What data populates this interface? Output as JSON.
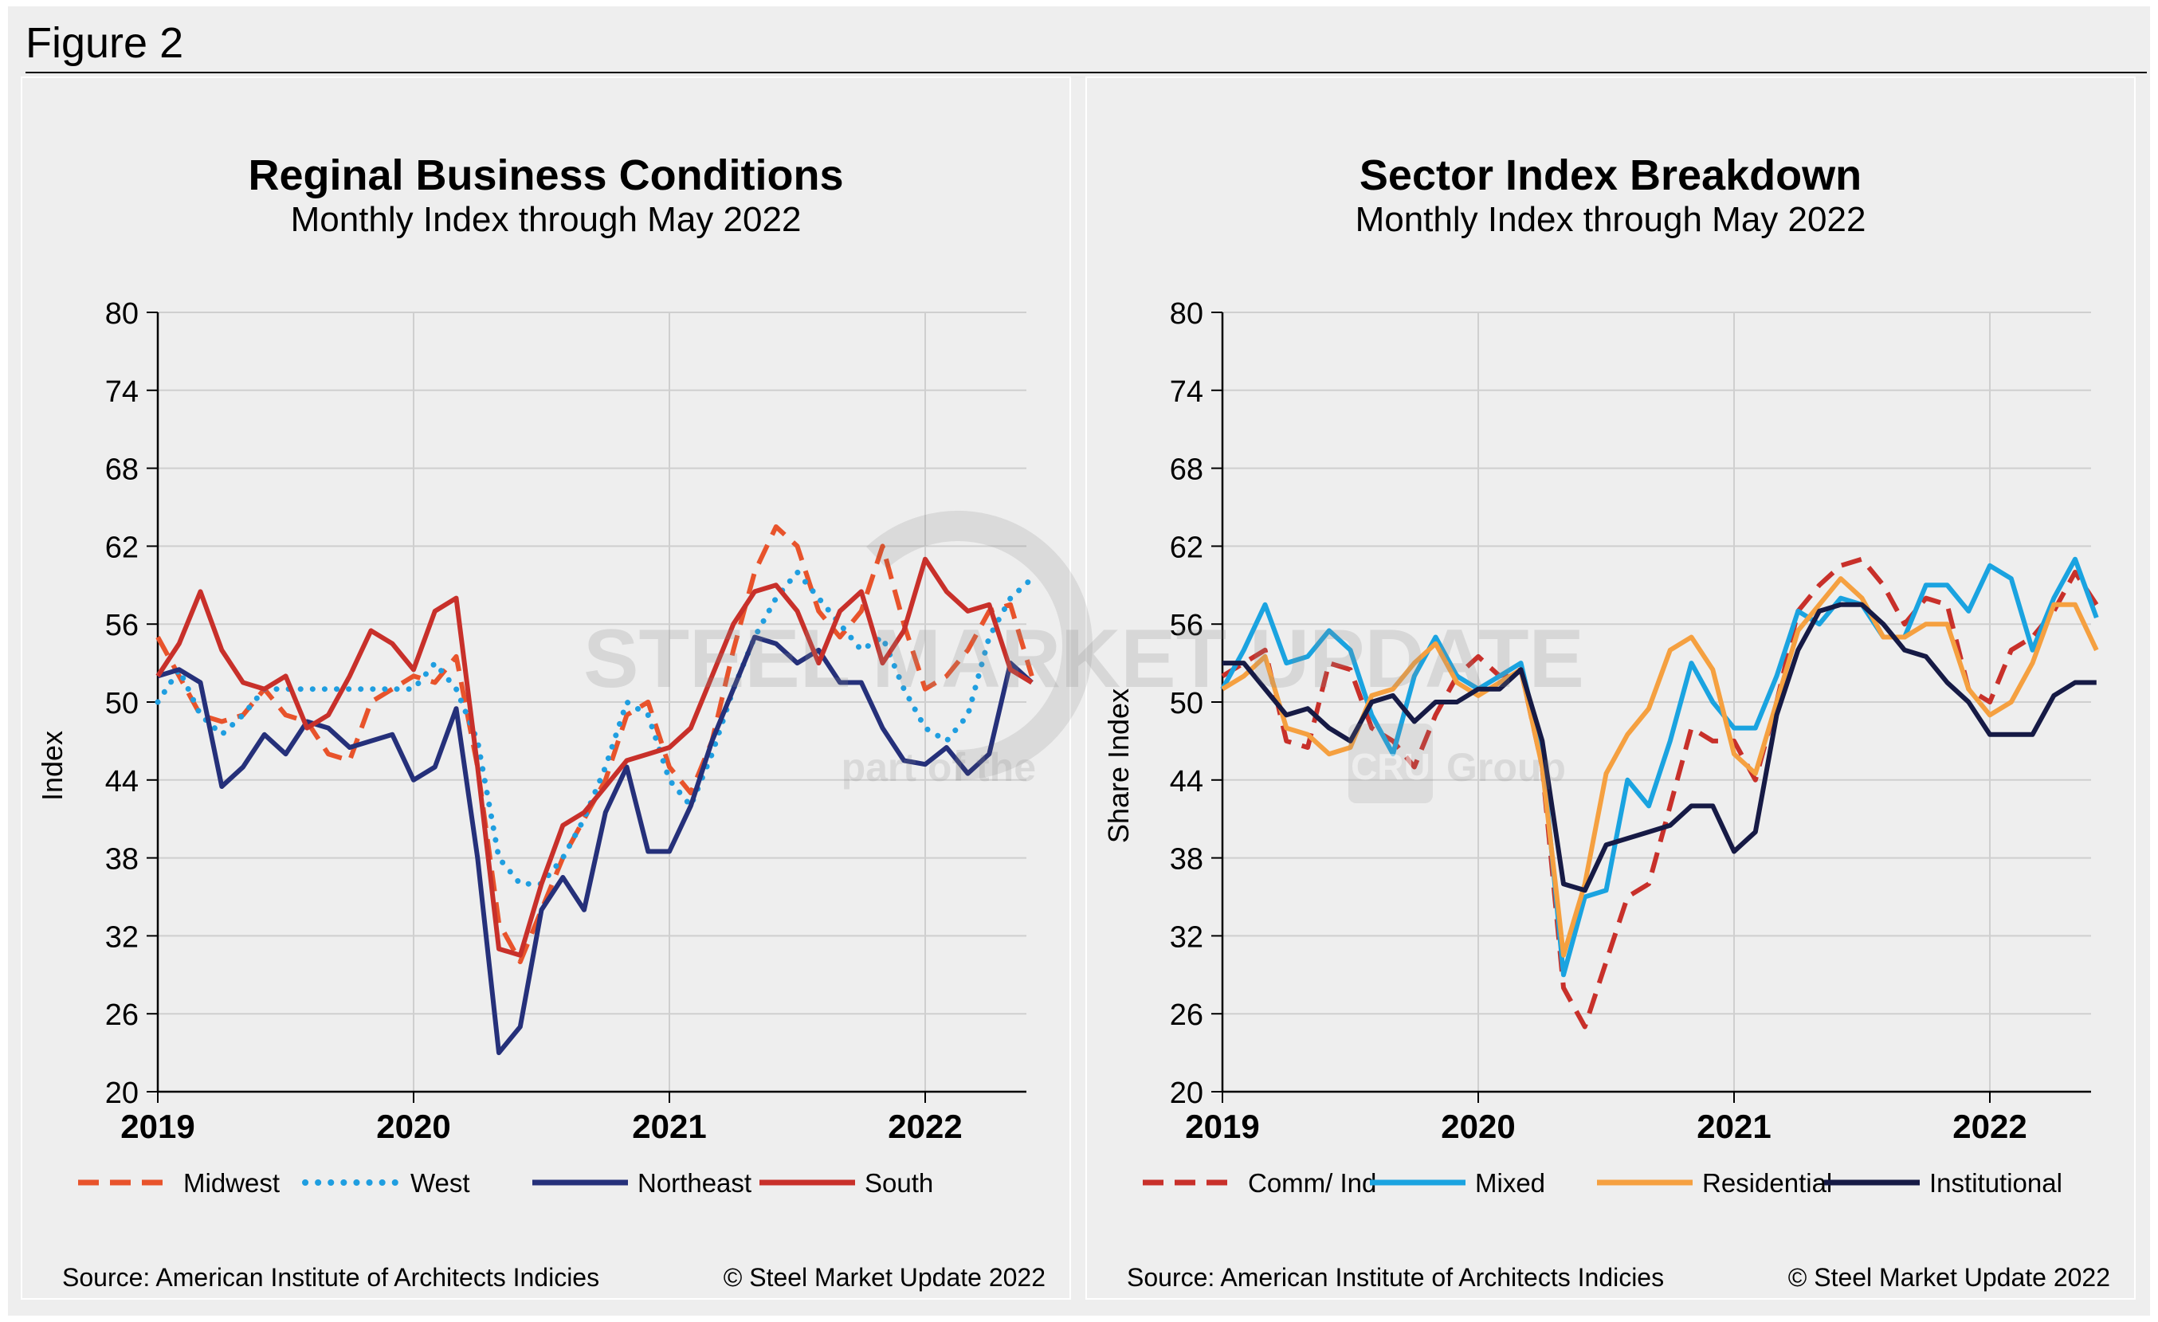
{
  "figure_title": "Figure 2",
  "watermark": {
    "brand": "STEEL MARKET UPDATE",
    "tagline": "part of the",
    "group_mark": "CRU",
    "group_word": "Group"
  },
  "chart_data": [
    {
      "type": "line",
      "title": "Reginal Business Conditions",
      "subtitle": "Monthly Index through May 2022",
      "xlabel": "",
      "ylabel": "Index",
      "ylim": [
        20,
        80
      ],
      "yticks": [
        "80",
        "74",
        "68",
        "62",
        "56",
        "50",
        "44",
        "38",
        "32",
        "26",
        "20"
      ],
      "xticks": [
        "2019",
        "2020",
        "2021",
        "2022"
      ],
      "x_start": "2019-01",
      "grid": true,
      "legend_position": "bottom",
      "source": "Source: American Institute of Architects Indicies",
      "copyright": "© Steel Market Update 2022",
      "series": [
        {
          "name": "Midwest",
          "style": "dashed",
          "color": "#e8532b",
          "values": [
            55,
            52,
            49,
            48.5,
            49,
            51,
            49,
            48.5,
            46,
            45.5,
            50,
            51,
            52,
            51.5,
            53.5,
            45,
            33,
            30,
            34,
            38,
            41,
            44,
            49,
            50,
            45,
            43,
            47,
            54,
            60,
            63.5,
            62,
            57,
            55,
            57,
            62,
            56,
            51,
            52,
            54,
            57,
            57.5,
            52
          ]
        },
        {
          "name": "West",
          "style": "dotted",
          "color": "#1f9ee0",
          "values": [
            50,
            52.5,
            49,
            47.5,
            49,
            51,
            51,
            51,
            51,
            51,
            51,
            51,
            51,
            53,
            51,
            47,
            38,
            36,
            36,
            38,
            41,
            45,
            50,
            49,
            44,
            42,
            46,
            51,
            55,
            58,
            60,
            58,
            56,
            54,
            55,
            51,
            48,
            47,
            49,
            55,
            58,
            59.5
          ]
        },
        {
          "name": "Northeast",
          "style": "solid",
          "color": "#25307a",
          "values": [
            52,
            52.5,
            51.5,
            43.5,
            45,
            47.5,
            46,
            48.5,
            48,
            46.5,
            47,
            47.5,
            44,
            45,
            49.5,
            38,
            23,
            25,
            34,
            36.5,
            34,
            41.5,
            45,
            38.5,
            38.5,
            42,
            47,
            51,
            55,
            54.5,
            53,
            54,
            51.5,
            51.5,
            48,
            45.5,
            45.2,
            46.5,
            44.5,
            46,
            53,
            51.5
          ]
        },
        {
          "name": "South",
          "style": "solid",
          "color": "#c8302a",
          "values": [
            52,
            54.5,
            58.5,
            54,
            51.5,
            51,
            52,
            48,
            49,
            52,
            55.5,
            54.5,
            52.5,
            57,
            58,
            45,
            31,
            30.5,
            36,
            40.5,
            41.5,
            43.5,
            45.5,
            46,
            46.5,
            48,
            52,
            56,
            58.5,
            59,
            57,
            53,
            57,
            58.5,
            53,
            55.5,
            61,
            58.5,
            57,
            57.5,
            52.5,
            51.5
          ]
        }
      ]
    },
    {
      "type": "line",
      "title": "Sector Index Breakdown",
      "subtitle": "Monthly Index through May 2022",
      "xlabel": "",
      "ylabel": "Share Index",
      "ylim": [
        20,
        80
      ],
      "yticks": [
        "80",
        "74",
        "68",
        "62",
        "56",
        "50",
        "44",
        "38",
        "32",
        "26",
        "20"
      ],
      "xticks": [
        "2019",
        "2020",
        "2021",
        "2022"
      ],
      "x_start": "2019-01",
      "grid": true,
      "legend_position": "bottom",
      "source": "Source: American Institute of Architects Indicies",
      "copyright": "© Steel Market Update 2022",
      "series": [
        {
          "name": "Comm/ Ind",
          "style": "dashed",
          "color": "#c8302a",
          "values": [
            52,
            53,
            54,
            47,
            46.5,
            53,
            52.5,
            48,
            47,
            45,
            49,
            52,
            53.5,
            52,
            52.5,
            45,
            28,
            25,
            30,
            35,
            36,
            42,
            48,
            47,
            47,
            44,
            50,
            57,
            59,
            60.5,
            61,
            59,
            56,
            58,
            57.5,
            51,
            50,
            54,
            55,
            57,
            60,
            57.5
          ]
        },
        {
          "name": "Mixed",
          "style": "solid",
          "color": "#1aa3e0",
          "values": [
            51,
            54,
            57.5,
            53,
            53.5,
            55.5,
            54,
            49,
            46,
            52,
            55,
            52,
            51,
            52,
            53,
            46,
            29,
            35,
            35.5,
            44,
            42,
            47,
            53,
            50,
            48,
            48,
            52,
            57,
            56,
            58,
            57.5,
            55,
            55,
            59,
            59,
            57,
            60.5,
            59.5,
            54,
            58,
            61,
            56.5
          ]
        },
        {
          "name": "Residential",
          "style": "solid",
          "color": "#f5a040",
          "values": [
            51,
            52,
            53.5,
            48,
            47.5,
            46,
            46.5,
            50.5,
            51,
            53,
            54.5,
            51.5,
            50.5,
            51.5,
            52.5,
            45,
            30.5,
            36,
            44.5,
            47.5,
            49.5,
            54,
            55,
            52.5,
            46,
            44.5,
            50,
            55.5,
            57.5,
            59.5,
            58,
            55,
            55,
            56,
            56,
            51,
            49,
            50,
            53,
            57.5,
            57.5,
            54
          ]
        },
        {
          "name": "Institutional",
          "style": "solid",
          "color": "#161a45",
          "values": [
            53,
            53,
            51,
            49,
            49.5,
            48,
            47,
            50,
            50.5,
            48.5,
            50,
            50,
            51,
            51,
            52.5,
            47,
            36,
            35.5,
            39,
            39.5,
            40,
            40.5,
            42,
            42,
            38.5,
            40,
            49,
            54,
            57,
            57.5,
            57.5,
            56,
            54,
            53.5,
            51.5,
            50,
            47.5,
            47.5,
            47.5,
            50.5,
            51.5,
            51.5
          ]
        }
      ]
    }
  ]
}
